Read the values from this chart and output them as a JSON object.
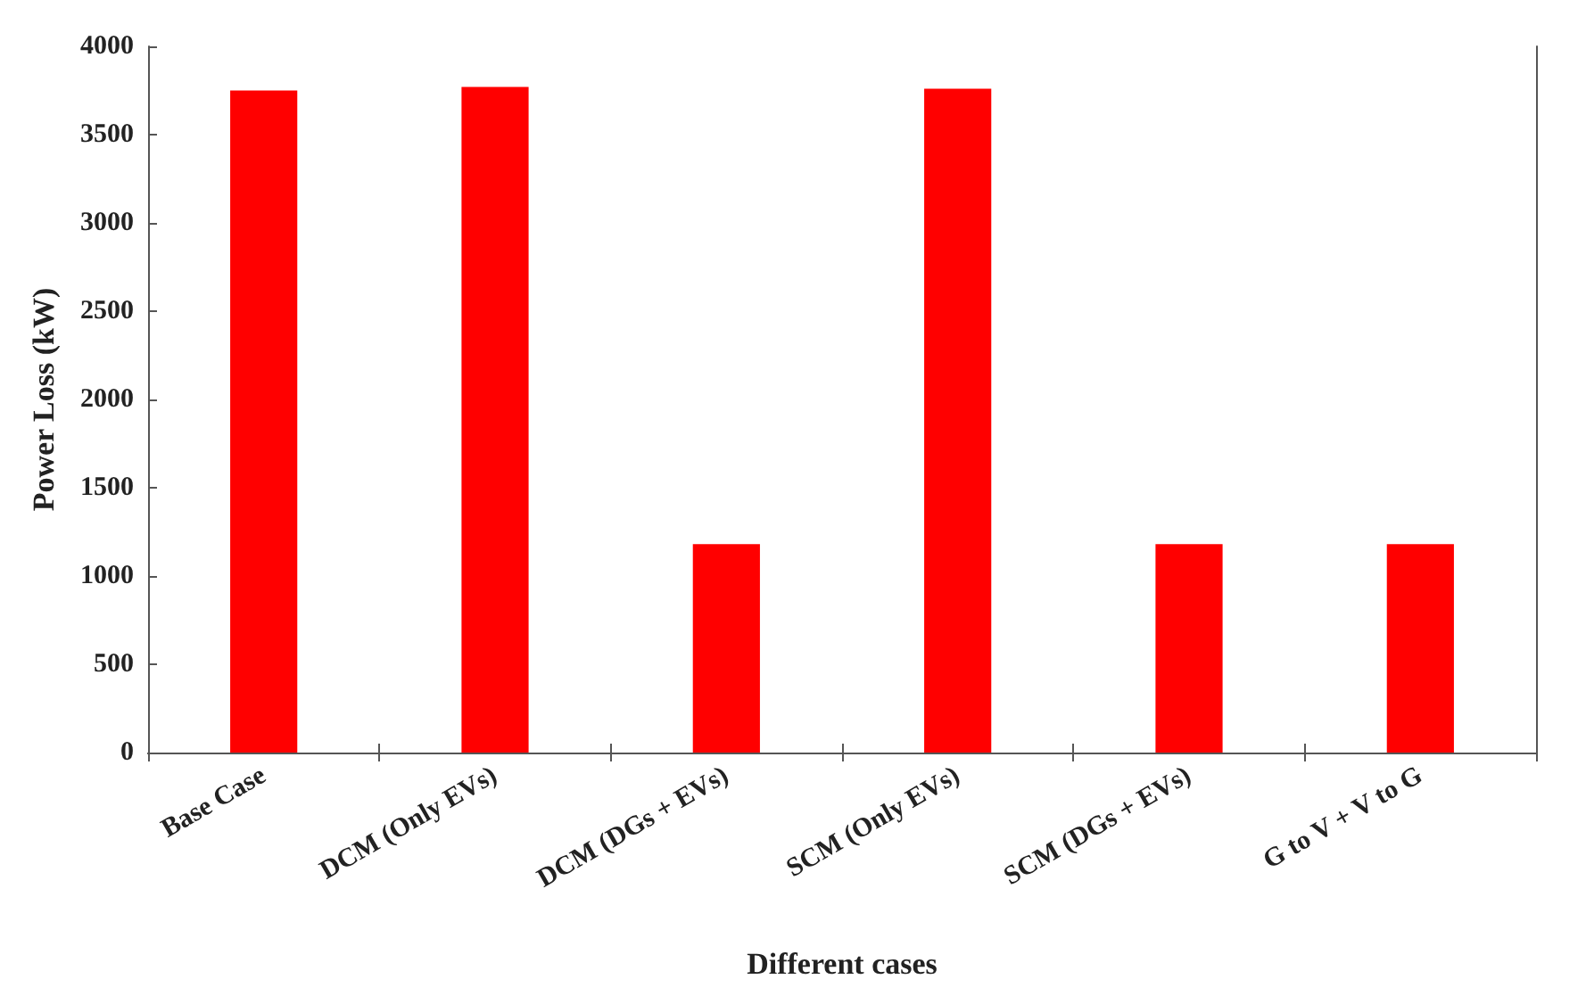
{
  "chart_data": {
    "type": "bar",
    "xlabel": "Different cases",
    "ylabel": "Power Loss (kW)",
    "categories": [
      "Base Case",
      "DCM (Only EVs)",
      "DCM (DGs + EVs)",
      "SCM (Only EVs)",
      "SCM (DGs + EVs)",
      "G to V + V to G"
    ],
    "values": [
      3750,
      3770,
      1180,
      3760,
      1180,
      1180
    ],
    "color": "#ff0000",
    "ylim": [
      0,
      4000
    ],
    "yticks": [
      0,
      500,
      1000,
      1500,
      2000,
      2500,
      3000,
      3500,
      4000
    ],
    "grid": false
  }
}
